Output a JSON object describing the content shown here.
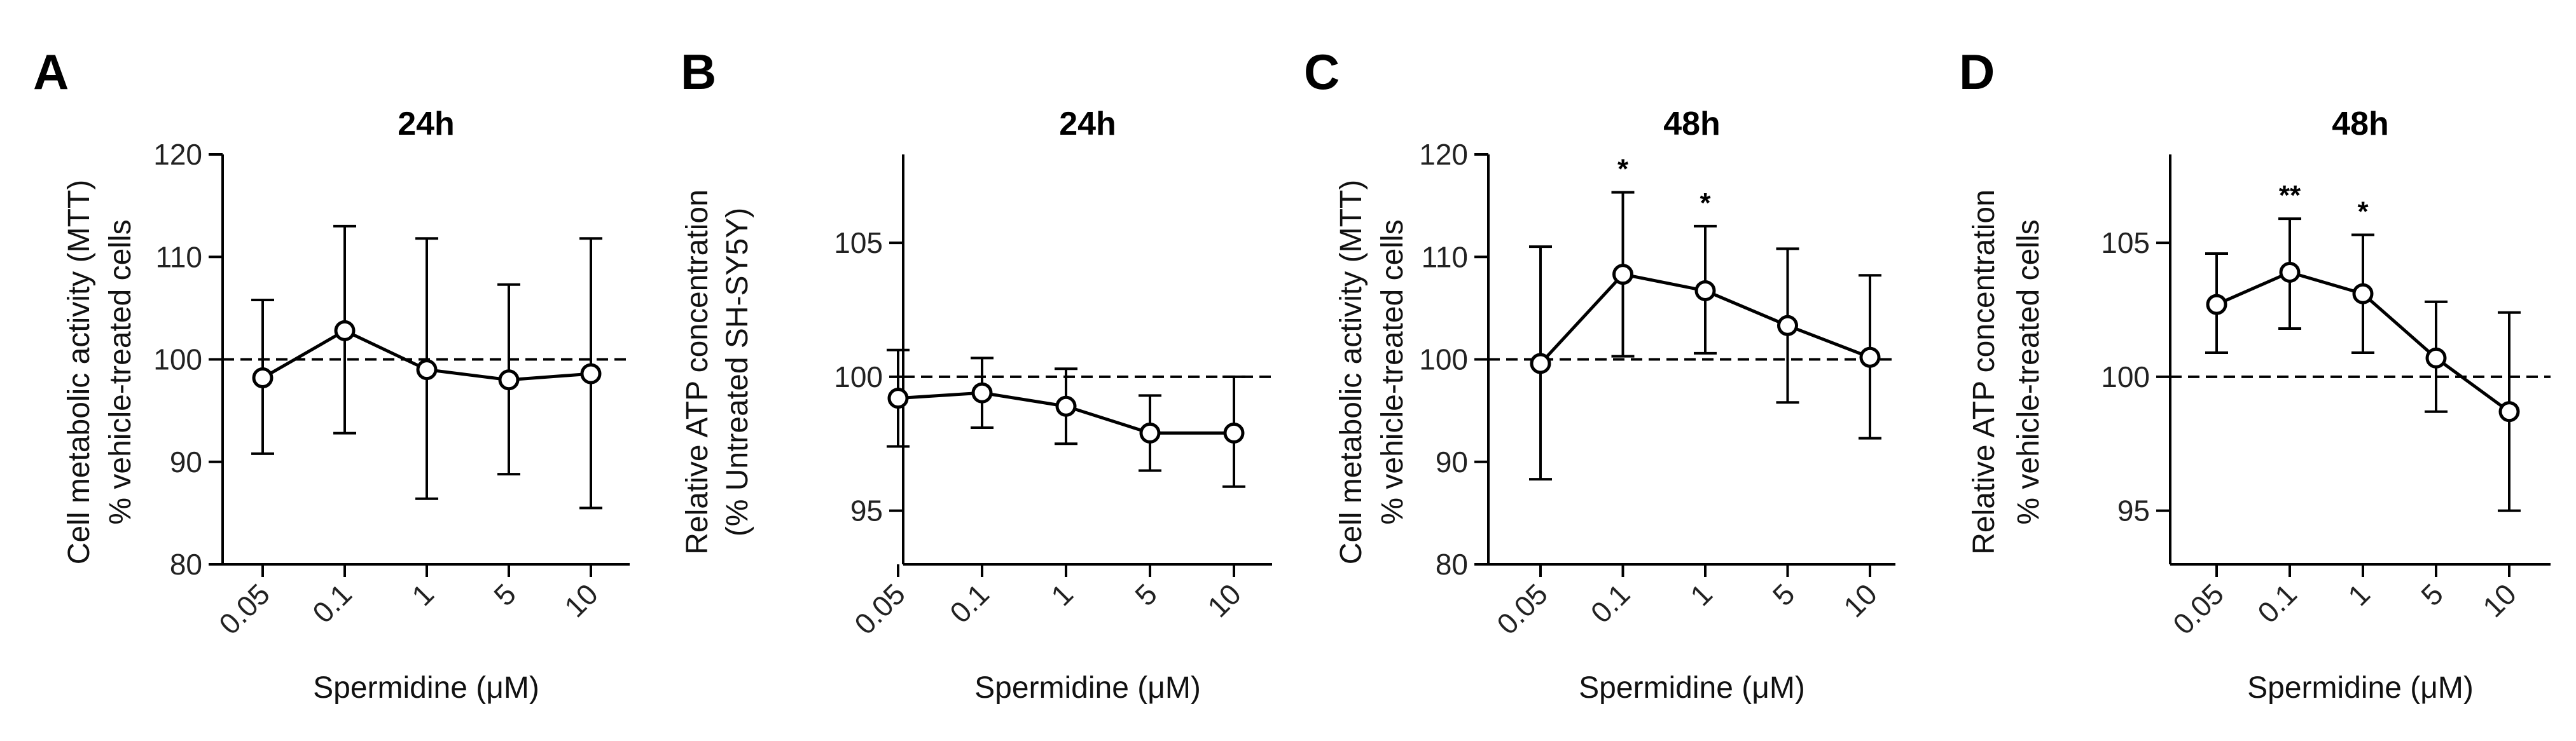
{
  "chart_data": [
    {
      "type": "line",
      "panel": "A",
      "title": "24h",
      "ylabel_line1": "Cell metabolic activity (MTT)",
      "ylabel_line2": "% vehicle-treated cells",
      "xlabel": "Spermidine (μM)",
      "categories": [
        "0.05",
        "0.1",
        "1",
        "5",
        "10"
      ],
      "values": [
        98.2,
        102.8,
        99.0,
        98.0,
        98.6
      ],
      "err_low": [
        90.8,
        92.8,
        86.4,
        88.8,
        85.5
      ],
      "err_high": [
        105.8,
        113.0,
        111.8,
        107.3,
        111.8
      ],
      "significance": [
        "",
        "",
        "",
        "",
        ""
      ],
      "ylim": [
        80,
        120
      ],
      "yticks": [
        80,
        90,
        100,
        110,
        120
      ],
      "reference_line": 100
    },
    {
      "type": "line",
      "panel": "B",
      "title": "24h",
      "ylabel_line1": "Relative ATP concentration",
      "ylabel_line2": "(% Untreated SH-SY5Y)",
      "xlabel": "Spermidine (μM)",
      "categories": [
        "0.05",
        "0.1",
        "1",
        "5",
        "10"
      ],
      "values": [
        99.2,
        99.4,
        98.9,
        97.9,
        97.9
      ],
      "err_low": [
        97.4,
        98.1,
        97.5,
        96.5,
        95.9
      ],
      "err_high": [
        101.0,
        100.7,
        100.3,
        99.3,
        100.0
      ],
      "significance": [
        "",
        "",
        "",
        "",
        ""
      ],
      "ylim": [
        93,
        108.3
      ],
      "yticks": [
        95,
        100,
        105
      ],
      "reference_line": 100
    },
    {
      "type": "line",
      "panel": "C",
      "title": "48h",
      "ylabel_line1": "Cell metabolic activity (MTT)",
      "ylabel_line2": "% vehicle-treated cells",
      "xlabel": "Spermidine (μM)",
      "categories": [
        "0.05",
        "0.1",
        "1",
        "5",
        "10"
      ],
      "values": [
        99.6,
        108.3,
        106.7,
        103.3,
        100.2
      ],
      "err_low": [
        88.3,
        100.3,
        100.6,
        95.8,
        92.3
      ],
      "err_high": [
        111.0,
        116.3,
        113.0,
        110.8,
        108.2
      ],
      "significance": [
        "",
        "*",
        "*",
        "",
        ""
      ],
      "ylim": [
        80,
        120
      ],
      "yticks": [
        80,
        90,
        100,
        110,
        120
      ],
      "reference_line": 100
    },
    {
      "type": "line",
      "panel": "D",
      "title": "48h",
      "ylabel_line1": "Relative ATP concentration",
      "ylabel_line2": "% vehicle-treated cells",
      "xlabel": "Spermidine (μM)",
      "categories": [
        "0.05",
        "0.1",
        "1",
        "5",
        "10"
      ],
      "values": [
        102.7,
        103.9,
        103.1,
        100.7,
        98.7
      ],
      "err_low": [
        100.9,
        101.8,
        100.9,
        98.7,
        95.0
      ],
      "err_high": [
        104.6,
        105.9,
        105.3,
        102.8,
        102.4
      ],
      "significance": [
        "",
        "**",
        "*",
        "",
        ""
      ],
      "ylim": [
        93,
        108.3
      ],
      "yticks": [
        95,
        100,
        105
      ],
      "reference_line": 100
    }
  ]
}
